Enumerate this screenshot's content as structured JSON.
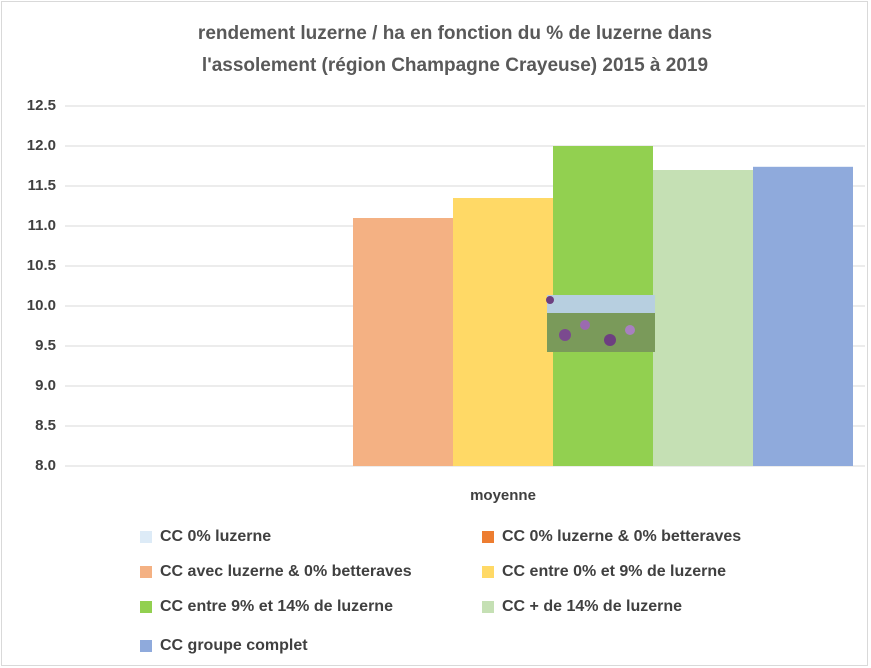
{
  "chart_data": {
    "type": "bar",
    "title": [
      "rendement luzerne / ha en fonction du % de luzerne dans",
      "l'assolement (région Champagne Crayeuse) 2015 à 2019"
    ],
    "categories": [
      "moyenne"
    ],
    "series": [
      {
        "name": "CC 0% luzerne",
        "color": "#ddebf7",
        "values": [
          null
        ]
      },
      {
        "name": "CC 0% luzerne & 0% betteraves",
        "color": "#ed7d31",
        "values": [
          null
        ]
      },
      {
        "name": "CC avec luzerne & 0% betteraves",
        "color": "#f4b183",
        "values": [
          11.1
        ]
      },
      {
        "name": "CC entre 0% et 9% de luzerne",
        "color": "#ffd966",
        "values": [
          11.35
        ]
      },
      {
        "name": "CC entre 9% et 14% de luzerne",
        "color": "#92d050",
        "values": [
          12.0
        ]
      },
      {
        "name": "CC + de 14% de luzerne",
        "color": "#c5e0b4",
        "values": [
          11.7
        ]
      },
      {
        "name": "CC groupe complet",
        "color": "#8faadc",
        "values": [
          11.74
        ]
      }
    ],
    "ylim": [
      8.0,
      12.5
    ],
    "yticks": [
      {
        "value": 8.0,
        "label": "8.0"
      },
      8.5,
      {
        "value": 9.0,
        "label": "9.0"
      },
      9.5,
      {
        "value": 10.0,
        "label": "10.0"
      },
      10.5,
      {
        "value": 11.0,
        "label": "11.0"
      },
      11.5,
      {
        "value": 12.0,
        "label": "12.0"
      },
      12.5
    ],
    "grid": true
  }
}
